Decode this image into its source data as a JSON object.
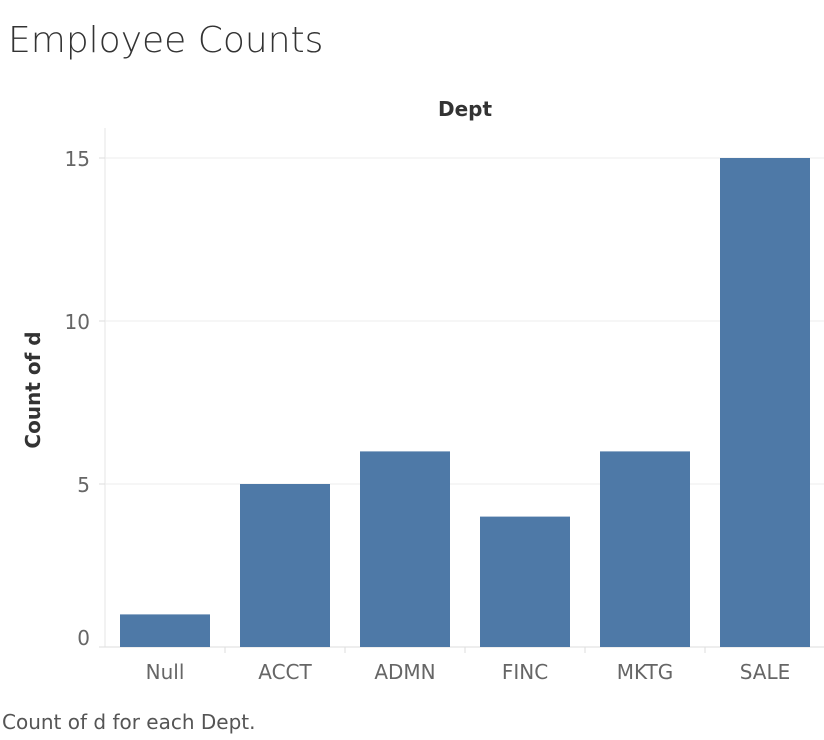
{
  "title": "Employee Counts",
  "caption": "Count of d for each Dept.",
  "chart_data": {
    "type": "bar",
    "xlabel": "Dept",
    "ylabel": "Count of d",
    "categories": [
      "Null",
      "ACCT",
      "ADMN",
      "FINC",
      "MKTG",
      "SALE"
    ],
    "values": [
      1,
      5,
      6,
      4,
      6,
      15
    ],
    "yticks": [
      0,
      5,
      10,
      15
    ],
    "ylim": [
      0,
      15
    ],
    "grid": true,
    "bar_color": "#4e79a7"
  }
}
